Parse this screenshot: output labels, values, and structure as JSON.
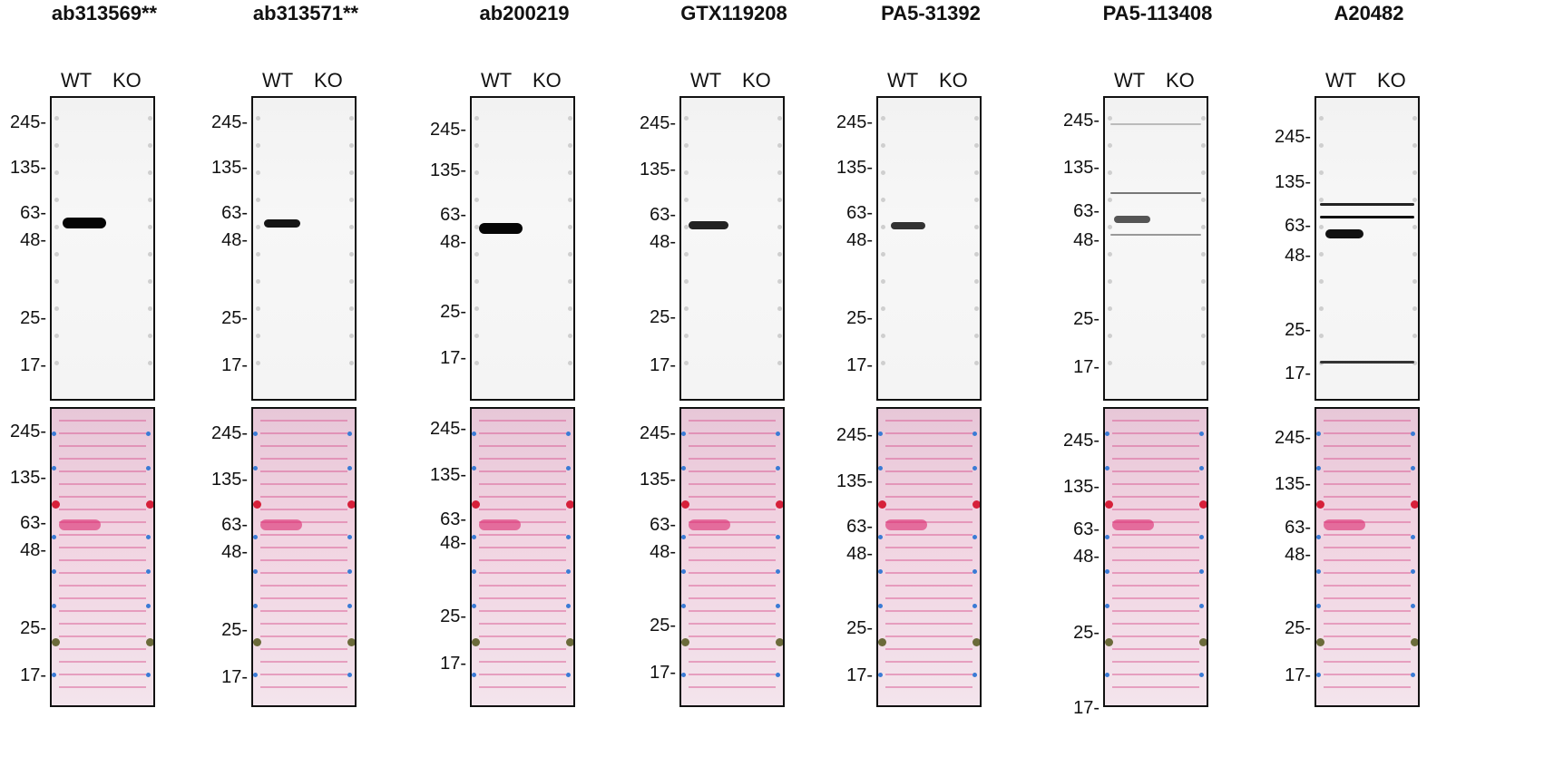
{
  "panels": [
    {
      "title": "ab313569**",
      "lanes": [
        "WT",
        "KO"
      ],
      "top_markers": [
        "245-",
        "135-",
        "63-",
        "48-",
        "25-",
        "17-"
      ],
      "bottom_markers": [
        "245-",
        "135-",
        "63-",
        "48-",
        "25-",
        "17-"
      ]
    },
    {
      "title": "ab313571**",
      "lanes": [
        "WT",
        "KO"
      ],
      "top_markers": [
        "245-",
        "135-",
        "63-",
        "48-",
        "25-",
        "17-"
      ],
      "bottom_markers": [
        "245-",
        "135-",
        "63-",
        "48-",
        "25-",
        "17-"
      ]
    },
    {
      "title": "ab200219",
      "lanes": [
        "WT",
        "KO"
      ],
      "top_markers": [
        "245-",
        "135-",
        "63-",
        "48-",
        "25-",
        "17-"
      ],
      "bottom_markers": [
        "245-",
        "135-",
        "63-",
        "48-",
        "25-",
        "17-"
      ]
    },
    {
      "title": "GTX119208",
      "lanes": [
        "WT",
        "KO"
      ],
      "top_markers": [
        "245-",
        "135-",
        "63-",
        "48-",
        "25-",
        "17-"
      ],
      "bottom_markers": [
        "245-",
        "135-",
        "63-",
        "48-",
        "25-",
        "17-"
      ]
    },
    {
      "title": "PA5-31392",
      "lanes": [
        "WT",
        "KO"
      ],
      "top_markers": [
        "245-",
        "135-",
        "63-",
        "48-",
        "25-",
        "17-"
      ],
      "bottom_markers": [
        "245-",
        "135-",
        "63-",
        "48-",
        "25-",
        "17-"
      ]
    },
    {
      "title": "PA5-113408",
      "lanes": [
        "WT",
        "KO"
      ],
      "top_markers": [
        "245-",
        "135-",
        "63-",
        "48-",
        "25-",
        "17-"
      ],
      "bottom_markers": [
        "245-",
        "135-",
        "63-",
        "48-",
        "25-",
        "17-"
      ]
    },
    {
      "title": "A20482",
      "lanes": [
        "WT",
        "KO"
      ],
      "top_markers": [
        "245-",
        "135-",
        "63-",
        "48-",
        "25-",
        "17-"
      ],
      "bottom_markers": [
        "245-",
        "135-",
        "63-",
        "48-",
        "25-",
        "17-"
      ]
    }
  ]
}
